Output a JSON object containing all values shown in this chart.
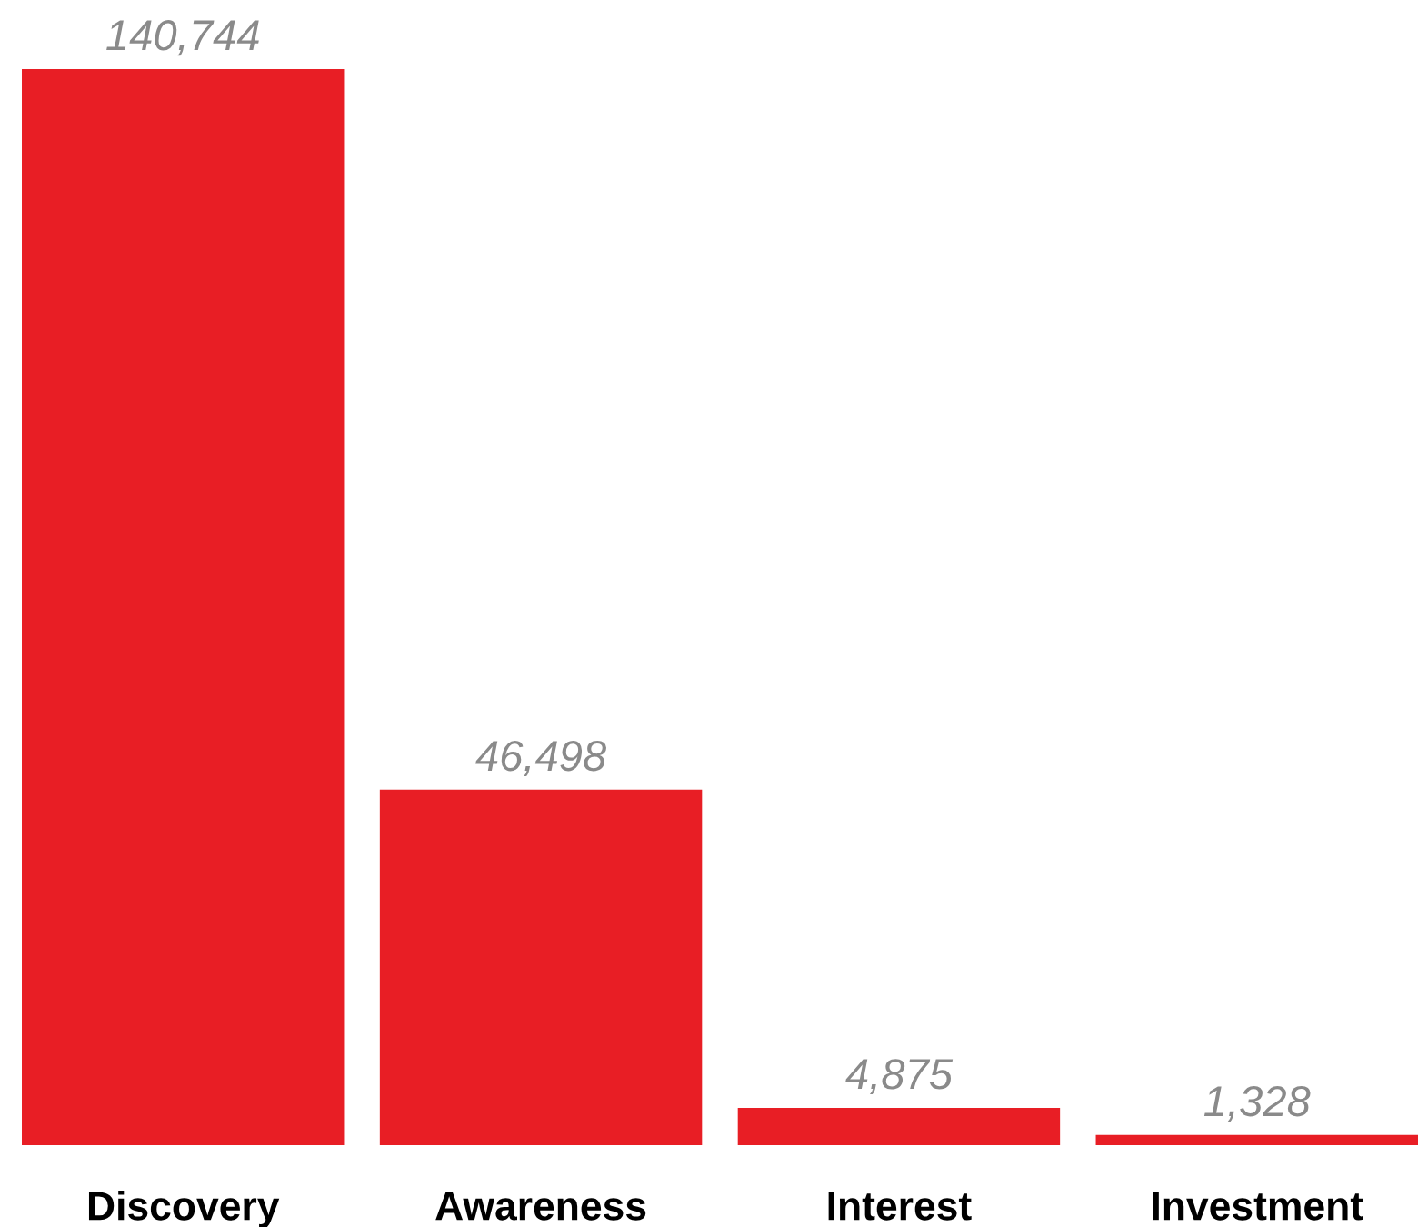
{
  "chart_data": {
    "type": "bar",
    "categories": [
      "Discovery",
      "Awareness",
      "Interest",
      "Investment"
    ],
    "values": [
      140744,
      46498,
      4875,
      1328
    ],
    "value_labels": [
      "140,744",
      "46,498",
      "4,875",
      "1,328"
    ],
    "color": "#e81e25",
    "grid": false,
    "legend": false
  }
}
